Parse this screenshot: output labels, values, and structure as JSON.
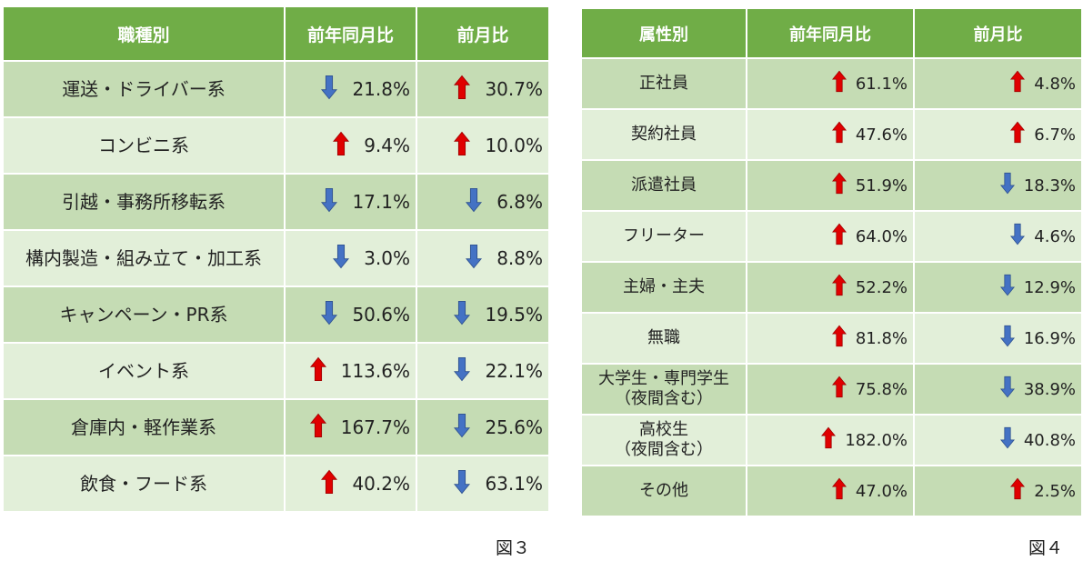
{
  "colors": {
    "header_bg": "#70ad47",
    "row_light": "#e2efd9",
    "row_dark": "#c5dcb4",
    "up_arrow": "#e00000",
    "down_arrow": "#4472c4"
  },
  "table3": {
    "headers": [
      "職種別",
      "前年同月比",
      "前月比"
    ],
    "rows": [
      {
        "category": "運送・ドライバー系",
        "yoy_dir": "down",
        "yoy": "21.8%",
        "mom_dir": "up",
        "mom": "30.7%"
      },
      {
        "category": "コンビニ系",
        "yoy_dir": "up",
        "yoy": "9.4%",
        "mom_dir": "up",
        "mom": "10.0%"
      },
      {
        "category": "引越・事務所移転系",
        "yoy_dir": "down",
        "yoy": "17.1%",
        "mom_dir": "down",
        "mom": "6.8%"
      },
      {
        "category": "構内製造・組み立て・加工系",
        "yoy_dir": "down",
        "yoy": "3.0%",
        "mom_dir": "down",
        "mom": "8.8%"
      },
      {
        "category": "キャンペーン・PR系",
        "yoy_dir": "down",
        "yoy": "50.6%",
        "mom_dir": "down",
        "mom": "19.5%"
      },
      {
        "category": "イベント系",
        "yoy_dir": "up",
        "yoy": "113.6%",
        "mom_dir": "down",
        "mom": "22.1%"
      },
      {
        "category": "倉庫内・軽作業系",
        "yoy_dir": "up",
        "yoy": "167.7%",
        "mom_dir": "down",
        "mom": "25.6%"
      },
      {
        "category": "飲食・フード系",
        "yoy_dir": "up",
        "yoy": "40.2%",
        "mom_dir": "down",
        "mom": "63.1%"
      }
    ],
    "caption": "図３"
  },
  "table4": {
    "headers": [
      "属性別",
      "前年同月比",
      "前月比"
    ],
    "rows": [
      {
        "category": "正社員",
        "yoy_dir": "up",
        "yoy": "61.1%",
        "mom_dir": "up",
        "mom": "4.8%"
      },
      {
        "category": "契約社員",
        "yoy_dir": "up",
        "yoy": "47.6%",
        "mom_dir": "up",
        "mom": "6.7%"
      },
      {
        "category": "派遣社員",
        "yoy_dir": "up",
        "yoy": "51.9%",
        "mom_dir": "down",
        "mom": "18.3%"
      },
      {
        "category": "フリーター",
        "yoy_dir": "up",
        "yoy": "64.0%",
        "mom_dir": "down",
        "mom": "4.6%"
      },
      {
        "category": "主婦・主夫",
        "yoy_dir": "up",
        "yoy": "52.2%",
        "mom_dir": "down",
        "mom": "12.9%"
      },
      {
        "category": "無職",
        "yoy_dir": "up",
        "yoy": "81.8%",
        "mom_dir": "down",
        "mom": "16.9%"
      },
      {
        "category": "大学生・専門学生\n（夜間含む）",
        "yoy_dir": "up",
        "yoy": "75.8%",
        "mom_dir": "down",
        "mom": "38.9%"
      },
      {
        "category": "高校生\n（夜間含む）",
        "yoy_dir": "up",
        "yoy": "182.0%",
        "mom_dir": "down",
        "mom": "40.8%"
      },
      {
        "category": "その他",
        "yoy_dir": "up",
        "yoy": "47.0%",
        "mom_dir": "up",
        "mom": "2.5%"
      }
    ],
    "caption": "図４"
  }
}
